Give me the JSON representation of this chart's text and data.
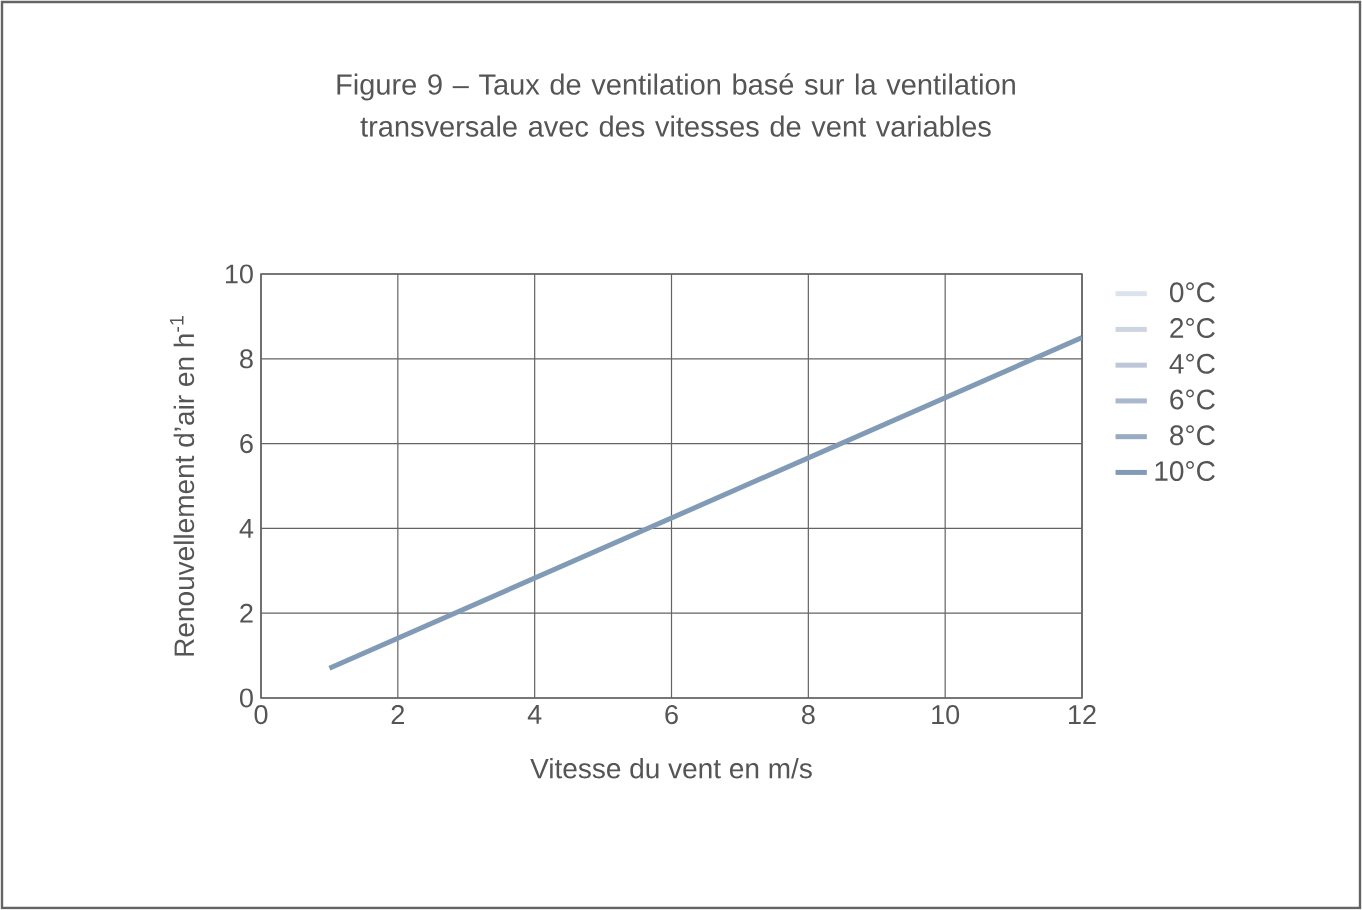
{
  "chart_data": {
    "type": "line",
    "title": "Figure 9 – Taux de ventilation basé sur la ventilation transversale avec des vitesses de vent variables",
    "xlabel": "Vitesse du vent en m/s",
    "ylabel": "Renouvellement d’air en h$^{-1}$",
    "x": [
      1,
      12
    ],
    "xlim": [
      0,
      12
    ],
    "ylim": [
      0,
      10
    ],
    "xticks": [
      0,
      2,
      4,
      6,
      8,
      10,
      12
    ],
    "yticks": [
      0,
      2,
      4,
      6,
      8,
      10
    ],
    "grid": true,
    "legend": "right",
    "series": [
      {
        "name": "0°C",
        "color": "#dde3ec",
        "values": [
          null,
          null
        ]
      },
      {
        "name": "2°C",
        "color": "#cdd5e1",
        "values": [
          null,
          null
        ]
      },
      {
        "name": "4°C",
        "color": "#bcc7d7",
        "values": [
          null,
          null
        ]
      },
      {
        "name": "6°C",
        "color": "#a9b8cc",
        "values": [
          null,
          null
        ]
      },
      {
        "name": "8°C",
        "color": "#97abc2",
        "values": [
          null,
          null
        ]
      },
      {
        "name": "10°C",
        "color": "#819bb6",
        "values": [
          0.7,
          8.5
        ]
      }
    ]
  }
}
